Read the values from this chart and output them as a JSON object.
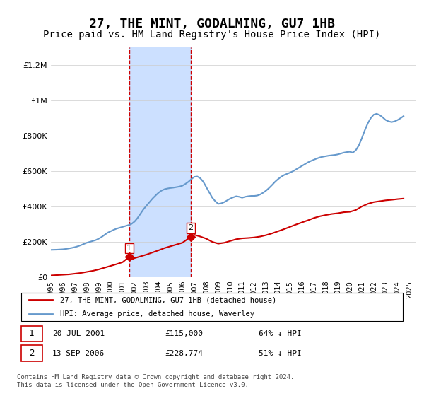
{
  "title": "27, THE MINT, GODALMING, GU7 1HB",
  "subtitle": "Price paid vs. HM Land Registry's House Price Index (HPI)",
  "title_fontsize": 13,
  "subtitle_fontsize": 10,
  "ylabel_ticks": [
    "£0",
    "£200K",
    "£400K",
    "£600K",
    "£800K",
    "£1M",
    "£1.2M"
  ],
  "ytick_values": [
    0,
    200000,
    400000,
    600000,
    800000,
    1000000,
    1200000
  ],
  "ylim": [
    0,
    1300000
  ],
  "xlim_start": 1995.0,
  "xlim_end": 2025.5,
  "hpi_color": "#6699cc",
  "price_color": "#cc0000",
  "transaction_color": "#cc0000",
  "vline_color": "#cc0000",
  "transactions": [
    {
      "id": 1,
      "date": "20-JUL-2001",
      "price": 115000,
      "pct": "64%",
      "direction": "↓",
      "x": 2001.55
    },
    {
      "id": 2,
      "date": "13-SEP-2006",
      "price": 228774,
      "pct": "51%",
      "direction": "↓",
      "x": 2006.7
    }
  ],
  "legend_line1": "27, THE MINT, GODALMING, GU7 1HB (detached house)",
  "legend_line2": "HPI: Average price, detached house, Waverley",
  "footnote": "Contains HM Land Registry data © Crown copyright and database right 2024.\nThis data is licensed under the Open Government Licence v3.0.",
  "shaded_region": [
    2001.55,
    2006.7
  ],
  "shaded_color": "#cce0ff",
  "background_color": "#ffffff",
  "hpi_data_x": [
    1995.0,
    1995.25,
    1995.5,
    1995.75,
    1996.0,
    1996.25,
    1996.5,
    1996.75,
    1997.0,
    1997.25,
    1997.5,
    1997.75,
    1998.0,
    1998.25,
    1998.5,
    1998.75,
    1999.0,
    1999.25,
    1999.5,
    1999.75,
    2000.0,
    2000.25,
    2000.5,
    2000.75,
    2001.0,
    2001.25,
    2001.5,
    2001.75,
    2002.0,
    2002.25,
    2002.5,
    2002.75,
    2003.0,
    2003.25,
    2003.5,
    2003.75,
    2004.0,
    2004.25,
    2004.5,
    2004.75,
    2005.0,
    2005.25,
    2005.5,
    2005.75,
    2006.0,
    2006.25,
    2006.5,
    2006.75,
    2007.0,
    2007.25,
    2007.5,
    2007.75,
    2008.0,
    2008.25,
    2008.5,
    2008.75,
    2009.0,
    2009.25,
    2009.5,
    2009.75,
    2010.0,
    2010.25,
    2010.5,
    2010.75,
    2011.0,
    2011.25,
    2011.5,
    2011.75,
    2012.0,
    2012.25,
    2012.5,
    2012.75,
    2013.0,
    2013.25,
    2013.5,
    2013.75,
    2014.0,
    2014.25,
    2014.5,
    2014.75,
    2015.0,
    2015.25,
    2015.5,
    2015.75,
    2016.0,
    2016.25,
    2016.5,
    2016.75,
    2017.0,
    2017.25,
    2017.5,
    2017.75,
    2018.0,
    2018.25,
    2018.5,
    2018.75,
    2019.0,
    2019.25,
    2019.5,
    2019.75,
    2020.0,
    2020.25,
    2020.5,
    2020.75,
    2021.0,
    2021.25,
    2021.5,
    2021.75,
    2022.0,
    2022.25,
    2022.5,
    2022.75,
    2023.0,
    2023.25,
    2023.5,
    2023.75,
    2024.0,
    2024.25,
    2024.5
  ],
  "hpi_data_y": [
    155000,
    155500,
    156000,
    157000,
    158000,
    160000,
    163000,
    166000,
    170000,
    175000,
    181000,
    188000,
    195000,
    200000,
    205000,
    210000,
    218000,
    228000,
    240000,
    252000,
    260000,
    268000,
    275000,
    280000,
    285000,
    290000,
    295000,
    302000,
    315000,
    335000,
    360000,
    385000,
    405000,
    425000,
    445000,
    462000,
    478000,
    490000,
    498000,
    502000,
    505000,
    507000,
    510000,
    513000,
    518000,
    528000,
    540000,
    555000,
    568000,
    570000,
    560000,
    540000,
    510000,
    480000,
    450000,
    430000,
    415000,
    418000,
    425000,
    435000,
    445000,
    452000,
    458000,
    455000,
    450000,
    455000,
    458000,
    460000,
    460000,
    462000,
    468000,
    478000,
    490000,
    505000,
    522000,
    540000,
    555000,
    568000,
    578000,
    585000,
    592000,
    600000,
    610000,
    620000,
    630000,
    640000,
    650000,
    658000,
    665000,
    672000,
    678000,
    682000,
    685000,
    688000,
    690000,
    692000,
    695000,
    700000,
    705000,
    708000,
    710000,
    705000,
    718000,
    745000,
    785000,
    830000,
    870000,
    900000,
    920000,
    925000,
    918000,
    905000,
    890000,
    882000,
    878000,
    882000,
    890000,
    900000,
    912000
  ],
  "price_data_x": [
    1995.0,
    1995.5,
    1996.0,
    1996.5,
    1997.0,
    1997.5,
    1998.0,
    1998.5,
    1999.0,
    1999.5,
    2000.0,
    2000.5,
    2001.0,
    2001.55,
    2001.75,
    2002.0,
    2002.5,
    2003.0,
    2003.5,
    2004.0,
    2004.5,
    2005.0,
    2005.5,
    2006.0,
    2006.7,
    2007.0,
    2007.5,
    2008.0,
    2008.5,
    2009.0,
    2009.5,
    2010.0,
    2010.5,
    2011.0,
    2011.5,
    2012.0,
    2012.5,
    2013.0,
    2013.5,
    2014.0,
    2014.5,
    2015.0,
    2015.5,
    2016.0,
    2016.5,
    2017.0,
    2017.5,
    2018.0,
    2018.5,
    2019.0,
    2019.5,
    2020.0,
    2020.5,
    2021.0,
    2021.5,
    2022.0,
    2022.5,
    2023.0,
    2023.5,
    2024.0,
    2024.5
  ],
  "price_data_y": [
    10000,
    12000,
    14000,
    16000,
    20000,
    24000,
    30000,
    36000,
    44000,
    54000,
    64000,
    74000,
    85000,
    115000,
    100000,
    108000,
    118000,
    128000,
    140000,
    152000,
    165000,
    175000,
    185000,
    195000,
    228774,
    240000,
    230000,
    218000,
    200000,
    190000,
    195000,
    205000,
    215000,
    220000,
    222000,
    225000,
    230000,
    238000,
    248000,
    260000,
    272000,
    285000,
    298000,
    310000,
    322000,
    335000,
    345000,
    352000,
    358000,
    362000,
    368000,
    370000,
    380000,
    400000,
    415000,
    425000,
    430000,
    435000,
    438000,
    442000,
    445000
  ]
}
